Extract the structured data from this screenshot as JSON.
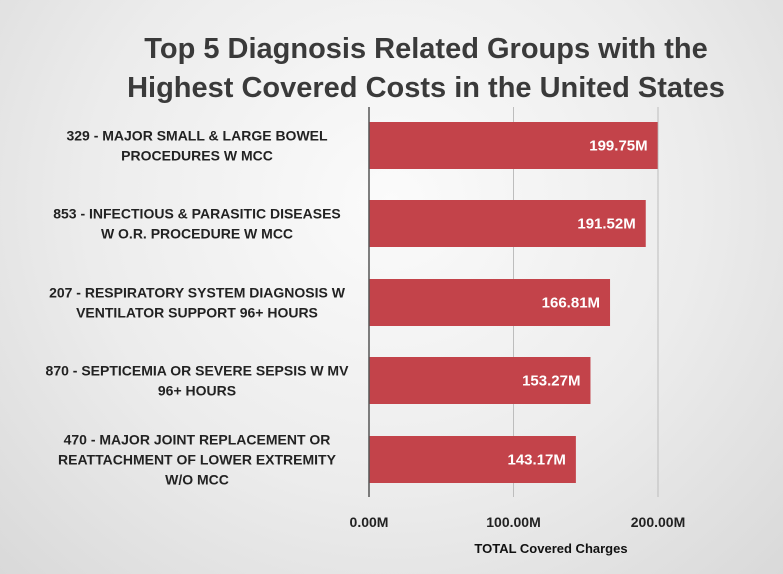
{
  "chart_data": {
    "type": "bar",
    "orientation": "horizontal",
    "title": "Top 5 Diagnosis Related Groups with the Highest Covered Costs in the United States",
    "title_lines": [
      "Top 5 Diagnosis Related Groups with the",
      "Highest Covered Costs in the United States"
    ],
    "categories": [
      "329 - MAJOR SMALL & LARGE BOWEL PROCEDURES W MCC",
      "853 - INFECTIOUS & PARASITIC DISEASES W O.R. PROCEDURE W MCC",
      "207 - RESPIRATORY SYSTEM DIAGNOSIS W VENTILATOR SUPPORT 96+ HOURS",
      "870 - SEPTICEMIA OR SEVERE SEPSIS W MV 96+ HOURS",
      "470 - MAJOR JOINT REPLACEMENT OR REATTACHMENT OF LOWER EXTREMITY W/O MCC"
    ],
    "category_lines": [
      [
        "329 - MAJOR SMALL & LARGE BOWEL",
        "PROCEDURES W MCC"
      ],
      [
        "853 - INFECTIOUS & PARASITIC DISEASES",
        "W O.R. PROCEDURE W MCC"
      ],
      [
        "207 - RESPIRATORY SYSTEM DIAGNOSIS W",
        "VENTILATOR SUPPORT 96+ HOURS"
      ],
      [
        "870 - SEPTICEMIA OR SEVERE SEPSIS W MV",
        "96+ HOURS"
      ],
      [
        "470 - MAJOR JOINT REPLACEMENT OR",
        "REATTACHMENT OF LOWER EXTREMITY",
        "W/O MCC"
      ]
    ],
    "values": [
      199.75,
      191.52,
      166.81,
      153.27,
      143.17
    ],
    "value_labels": [
      "199.75M",
      "191.52M",
      "166.81M",
      "153.27M",
      "143.17M"
    ],
    "xlabel": "TOTAL Covered Charges",
    "ylabel": "",
    "xlim": [
      0,
      200
    ],
    "x_ticks": [
      0,
      100,
      200
    ],
    "x_tick_labels": [
      "0.00M",
      "100.00M",
      "200.00M"
    ],
    "grid": true,
    "colors": {
      "bar": "#c3434a",
      "axis": "#555555",
      "grid": "#bdbdbd"
    }
  }
}
